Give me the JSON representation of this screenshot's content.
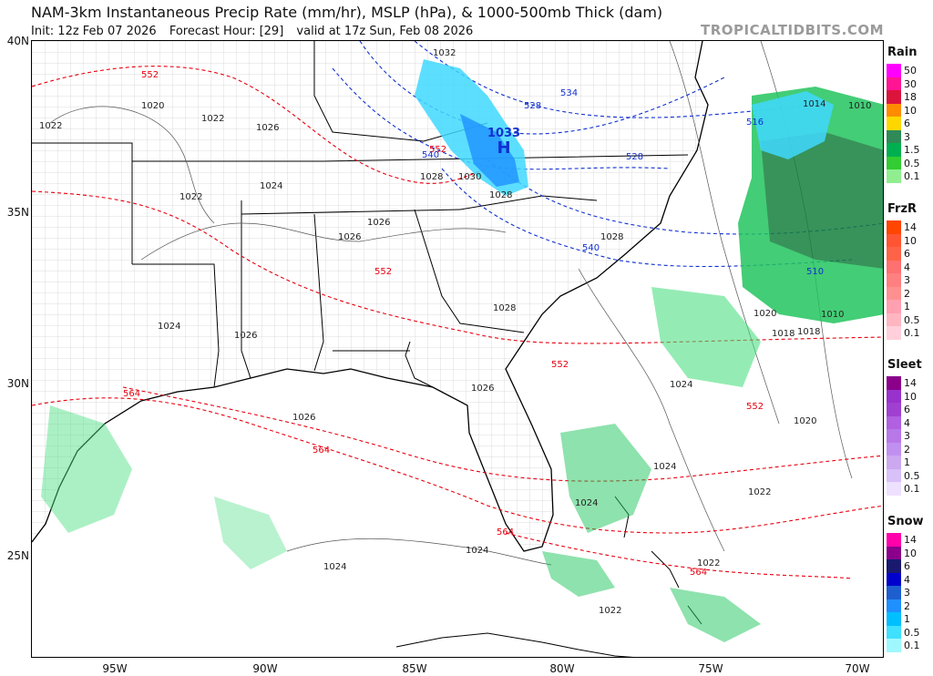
{
  "header": {
    "title": "NAM-3km Instantaneous Precip Rate (mm/hr), MSLP (hPa), & 1000-500mb Thick (dam)",
    "init": "Init: 12z Feb 07 2026",
    "forecast_hour": "Forecast Hour: [29]",
    "valid": "valid at 17z Sun, Feb 08 2026",
    "brand": "TROPICALTIDBITS.COM"
  },
  "axes": {
    "lat_labels": [
      "40N",
      "35N",
      "30N",
      "25N"
    ],
    "lon_labels": [
      "95W",
      "90W",
      "85W",
      "80W",
      "75W",
      "70W"
    ]
  },
  "legends": [
    {
      "name": "Rain",
      "values": [
        "50",
        "30",
        "18",
        "10",
        "6",
        "3",
        "1.5",
        "0.5",
        "0.1"
      ],
      "colors": [
        "#ff00ff",
        "#ff1493",
        "#dc143c",
        "#ff8c00",
        "#ffd700",
        "#2e8b57",
        "#00b050",
        "#32cd32",
        "#90ee90"
      ]
    },
    {
      "name": "FrzR",
      "values": [
        "14",
        "10",
        "6",
        "4",
        "3",
        "2",
        "1",
        "0.5",
        "0.1"
      ],
      "colors": [
        "#ff4500",
        "#ff5533",
        "#ff6347",
        "#ff7070",
        "#ff8080",
        "#ff9090",
        "#ffa0b0",
        "#ffb6c1",
        "#ffd0dc"
      ]
    },
    {
      "name": "Sleet",
      "values": [
        "14",
        "10",
        "6",
        "4",
        "3",
        "2",
        "1",
        "0.5",
        "0.1"
      ],
      "colors": [
        "#8b008b",
        "#9932cc",
        "#a040d0",
        "#b060e0",
        "#b878e8",
        "#c090f0",
        "#cca8f0",
        "#d8c0f8",
        "#eee0ff"
      ]
    },
    {
      "name": "Snow",
      "values": [
        "14",
        "10",
        "6",
        "4",
        "3",
        "2",
        "1",
        "0.5",
        "0.1"
      ],
      "colors": [
        "#ff00aa",
        "#8b008b",
        "#191970",
        "#0000cd",
        "#1e5fd0",
        "#1e90ff",
        "#00bfff",
        "#40e0ff",
        "#a0f8ff"
      ]
    }
  ],
  "map_labels": {
    "high_pressure_symbol": "H",
    "high_pressure_value": "1033",
    "isobars": [
      "1032",
      "1020",
      "1022",
      "1026",
      "1022",
      "1024",
      "1022",
      "1024",
      "1026",
      "1026",
      "1028",
      "1030",
      "1028",
      "1028",
      "1026",
      "1028",
      "1026",
      "1026",
      "1024",
      "1024",
      "1024",
      "1022",
      "1022",
      "1024",
      "1022",
      "1020",
      "1018",
      "1010",
      "1010",
      "1014",
      "1018",
      "1020",
      "1024"
    ],
    "thickness_red": [
      "552",
      "552",
      "552",
      "552",
      "564",
      "564",
      "564",
      "564",
      "552"
    ],
    "thickness_blue": [
      "540",
      "528",
      "540",
      "516",
      "510",
      "528",
      "534"
    ]
  },
  "colors": {
    "thickness_red": "#e8000f",
    "thickness_blue": "#1030d0",
    "isobar": "#333333",
    "border": "#000000",
    "county": "#9a9a9a",
    "rain": "#00b050",
    "snow_light": "#40d8ff",
    "snow_mid": "#1e90ff"
  }
}
